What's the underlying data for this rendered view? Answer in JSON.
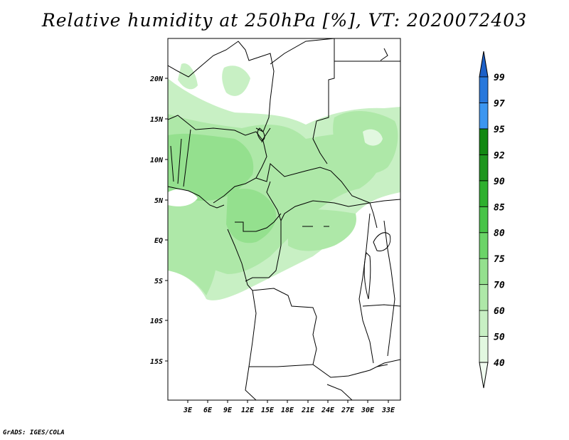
{
  "title": "Relative humidity at 250hPa [%], VT: 2020072403",
  "credit": "GrADS: IGES/COLA",
  "map": {
    "lon_labels": [
      "3E",
      "6E",
      "9E",
      "12E",
      "15E",
      "18E",
      "21E",
      "24E",
      "27E",
      "30E",
      "33E"
    ],
    "lat_labels": [
      "20N",
      "15N",
      "10N",
      "5N",
      "EQ",
      "5S",
      "10S",
      "15S"
    ]
  },
  "colorbar": {
    "levels": [
      "40",
      "50",
      "60",
      "70",
      "75",
      "80",
      "85",
      "90",
      "92",
      "95",
      "97",
      "99"
    ],
    "colors": [
      "#f0fcf0",
      "#e2f8e0",
      "#c8f0c4",
      "#aee8a8",
      "#94e08e",
      "#6cd468",
      "#48c448",
      "#2eb02e",
      "#1e961e",
      "#118811",
      "#3c96f0",
      "#2878dc",
      "#1c60c8"
    ]
  }
}
